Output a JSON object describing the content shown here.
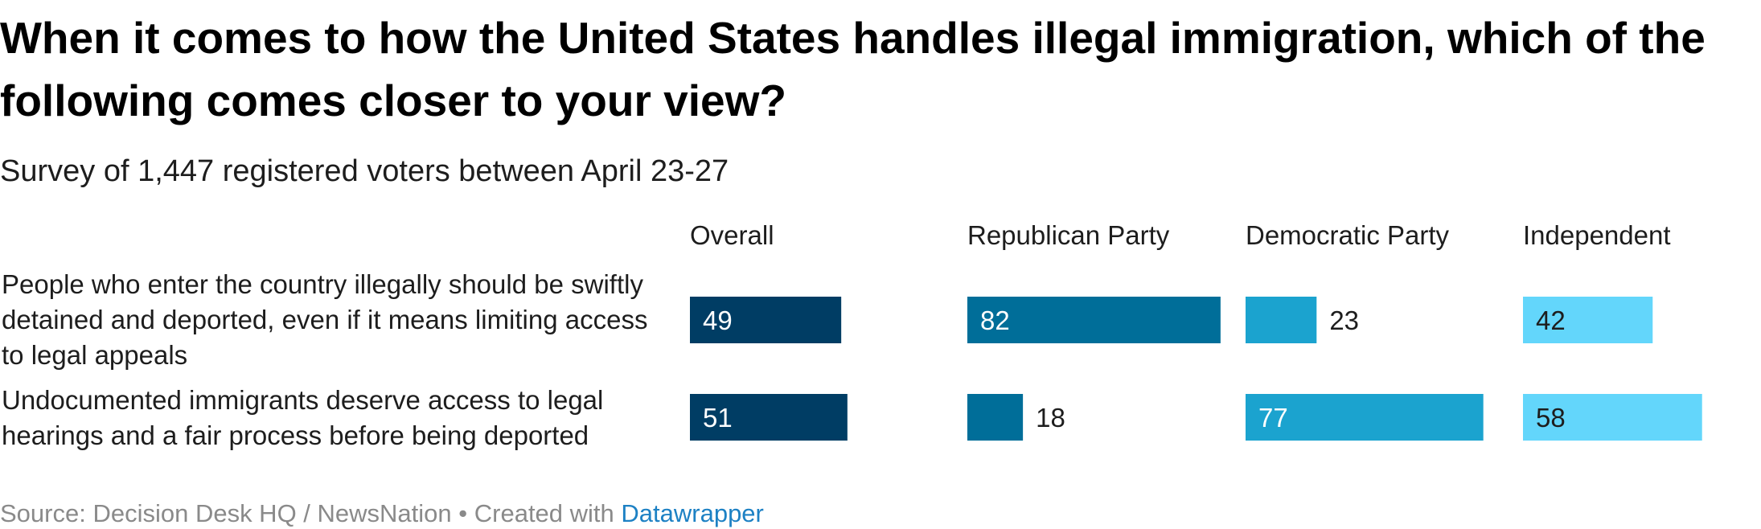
{
  "title": "When it comes to how the United States handles illegal immigration, which of the following comes closer to your view?",
  "subtitle": "Survey of 1,447 registered voters between April 23-27",
  "footer": {
    "source": "Source: Decision Desk HQ / NewsNation",
    "separator": " • ",
    "created_with": "Created with ",
    "tool": "Datawrapper"
  },
  "chart_data": {
    "type": "bar",
    "title": "When it comes to how the United States handles illegal immigration, which of the following comes closer to your view?",
    "subtitle": "Survey of 1,447 registered voters between April 23-27",
    "categories": [
      "People who enter the country illegally should be swiftly detained and deported, even if it means limiting access to legal appeals",
      "Undocumented immigrants deserve access to legal hearings and a fair process before being deported"
    ],
    "series": [
      {
        "name": "Overall",
        "values": [
          49,
          51
        ],
        "color": "#003d64"
      },
      {
        "name": "Republican Party",
        "values": [
          82,
          18
        ],
        "color": "#006e99"
      },
      {
        "name": "Democratic Party",
        "values": [
          23,
          77
        ],
        "color": "#1ba3cf"
      },
      {
        "name": "Independent",
        "values": [
          42,
          58
        ],
        "color": "#63d6fb"
      }
    ],
    "xlim": [
      0,
      100
    ],
    "grid": false,
    "layout": "small multiples (one column per series)",
    "value_labels": true
  }
}
